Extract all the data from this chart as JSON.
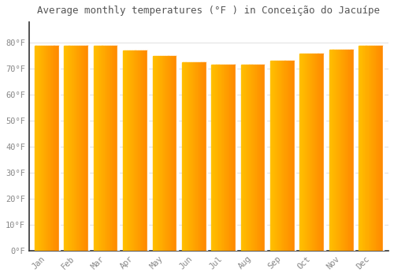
{
  "title": "Average monthly temperatures (°F ) in Conceição do Jacuípe",
  "months": [
    "Jan",
    "Feb",
    "Mar",
    "Apr",
    "May",
    "Jun",
    "Jul",
    "Aug",
    "Sep",
    "Oct",
    "Nov",
    "Dec"
  ],
  "values": [
    79,
    79,
    79,
    77,
    75,
    72.5,
    71.5,
    71.5,
    73,
    76,
    77.5,
    79
  ],
  "bar_color_left": "#FFB300",
  "bar_color_right": "#FF8C00",
  "background_color": "#ffffff",
  "ylim": [
    0,
    88
  ],
  "yticks": [
    0,
    10,
    20,
    30,
    40,
    50,
    60,
    70,
    80
  ],
  "ytick_labels": [
    "0°F",
    "10°F",
    "20°F",
    "30°F",
    "40°F",
    "50°F",
    "60°F",
    "70°F",
    "80°F"
  ],
  "title_fontsize": 9,
  "tick_fontsize": 7.5,
  "grid_color": "#e0e0e0",
  "text_color": "#888888",
  "spine_color": "#333333"
}
